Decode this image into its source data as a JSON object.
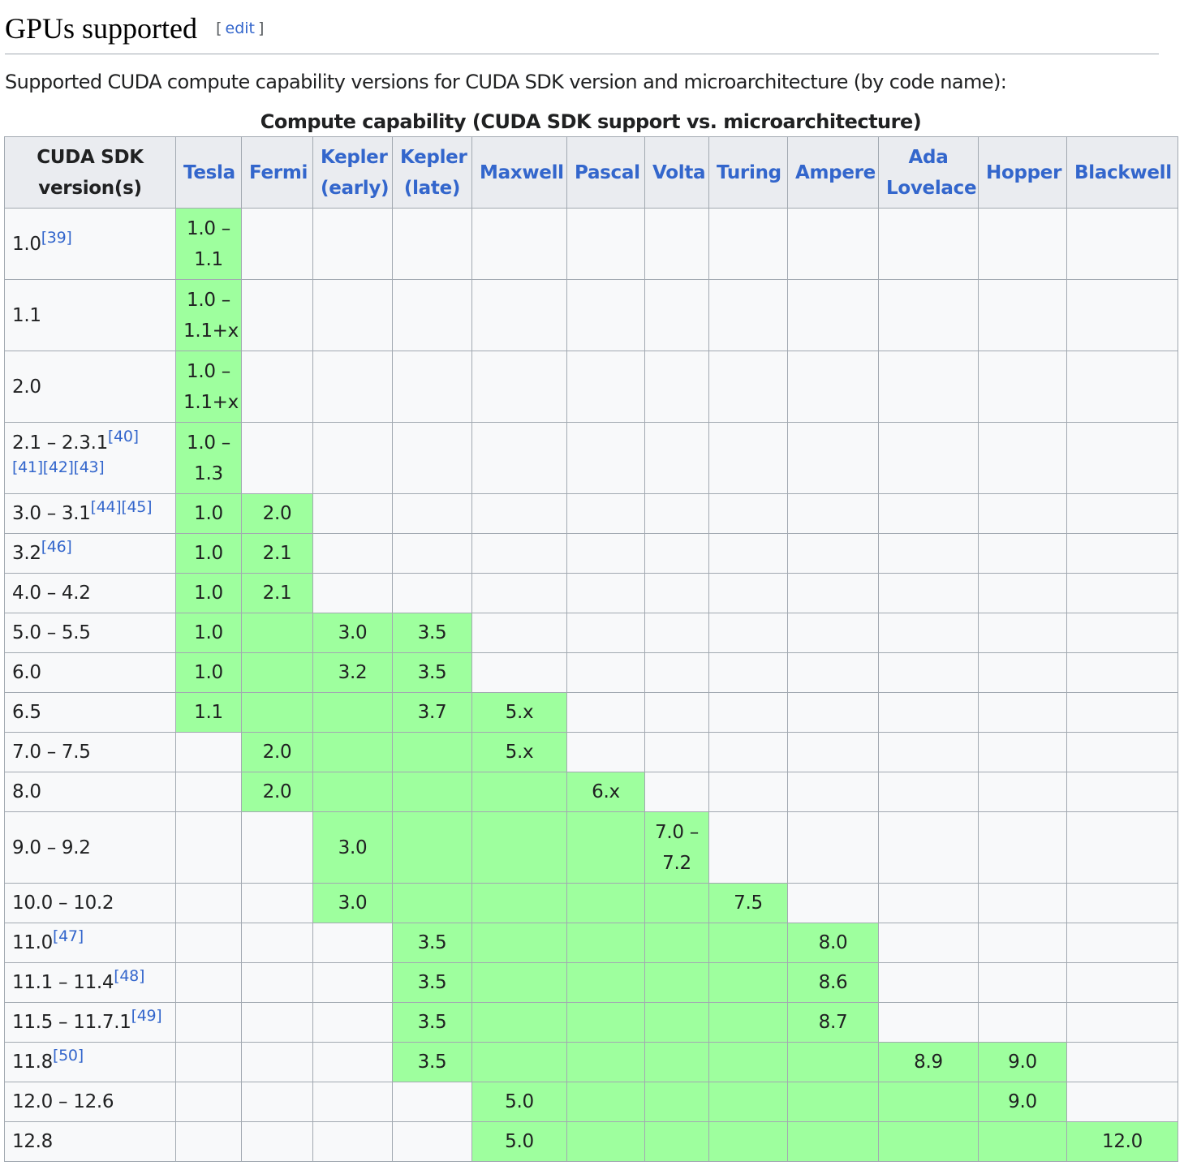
{
  "section": {
    "title": "GPUs supported",
    "edit_label": "edit",
    "edit_open": "[",
    "edit_close": "]",
    "intro": "Supported CUDA compute capability versions for CUDA SDK version and microarchitecture (by code name):"
  },
  "table": {
    "caption": "Compute capability (CUDA SDK support vs. microarchitecture)",
    "highlight_color": "#9eff9e",
    "header_color": "#eaecf0",
    "link_color": "#3366cc",
    "headers": [
      "CUDA SDK version(s)",
      "Tesla",
      "Fermi",
      "Kepler (early)",
      "Kepler (late)",
      "Maxwell",
      "Pascal",
      "Volta",
      "Turing",
      "Ampere",
      "Ada Lovelace",
      "Hopper",
      "Blackwell"
    ],
    "rows": [
      {
        "version": "1.0",
        "refs": "[39]",
        "cells": [
          {
            "t": "1.0 – 1.1",
            "g": true
          },
          {
            "t": "",
            "g": false
          },
          {
            "t": "",
            "g": false
          },
          {
            "t": "",
            "g": false
          },
          {
            "t": "",
            "g": false
          },
          {
            "t": "",
            "g": false
          },
          {
            "t": "",
            "g": false
          },
          {
            "t": "",
            "g": false
          },
          {
            "t": "",
            "g": false
          },
          {
            "t": "",
            "g": false
          },
          {
            "t": "",
            "g": false
          },
          {
            "t": "",
            "g": false
          }
        ]
      },
      {
        "version": "1.1",
        "refs": "",
        "cells": [
          {
            "t": "1.0 – 1.1+x",
            "g": true
          },
          {
            "t": "",
            "g": false
          },
          {
            "t": "",
            "g": false
          },
          {
            "t": "",
            "g": false
          },
          {
            "t": "",
            "g": false
          },
          {
            "t": "",
            "g": false
          },
          {
            "t": "",
            "g": false
          },
          {
            "t": "",
            "g": false
          },
          {
            "t": "",
            "g": false
          },
          {
            "t": "",
            "g": false
          },
          {
            "t": "",
            "g": false
          },
          {
            "t": "",
            "g": false
          }
        ]
      },
      {
        "version": "2.0",
        "refs": "",
        "cells": [
          {
            "t": "1.0 – 1.1+x",
            "g": true
          },
          {
            "t": "",
            "g": false
          },
          {
            "t": "",
            "g": false
          },
          {
            "t": "",
            "g": false
          },
          {
            "t": "",
            "g": false
          },
          {
            "t": "",
            "g": false
          },
          {
            "t": "",
            "g": false
          },
          {
            "t": "",
            "g": false
          },
          {
            "t": "",
            "g": false
          },
          {
            "t": "",
            "g": false
          },
          {
            "t": "",
            "g": false
          },
          {
            "t": "",
            "g": false
          }
        ]
      },
      {
        "version": "2.1 – 2.3.1",
        "refs": "[40][41][42][43]",
        "cells": [
          {
            "t": "1.0 – 1.3",
            "g": true
          },
          {
            "t": "",
            "g": false
          },
          {
            "t": "",
            "g": false
          },
          {
            "t": "",
            "g": false
          },
          {
            "t": "",
            "g": false
          },
          {
            "t": "",
            "g": false
          },
          {
            "t": "",
            "g": false
          },
          {
            "t": "",
            "g": false
          },
          {
            "t": "",
            "g": false
          },
          {
            "t": "",
            "g": false
          },
          {
            "t": "",
            "g": false
          },
          {
            "t": "",
            "g": false
          }
        ]
      },
      {
        "version": "3.0 – 3.1",
        "refs": "[44][45]",
        "cells": [
          {
            "t": "1.0",
            "g": true
          },
          {
            "t": "2.0",
            "g": true
          },
          {
            "t": "",
            "g": false
          },
          {
            "t": "",
            "g": false
          },
          {
            "t": "",
            "g": false
          },
          {
            "t": "",
            "g": false
          },
          {
            "t": "",
            "g": false
          },
          {
            "t": "",
            "g": false
          },
          {
            "t": "",
            "g": false
          },
          {
            "t": "",
            "g": false
          },
          {
            "t": "",
            "g": false
          },
          {
            "t": "",
            "g": false
          }
        ]
      },
      {
        "version": "3.2",
        "refs": "[46]",
        "cells": [
          {
            "t": "1.0",
            "g": true
          },
          {
            "t": "2.1",
            "g": true
          },
          {
            "t": "",
            "g": false
          },
          {
            "t": "",
            "g": false
          },
          {
            "t": "",
            "g": false
          },
          {
            "t": "",
            "g": false
          },
          {
            "t": "",
            "g": false
          },
          {
            "t": "",
            "g": false
          },
          {
            "t": "",
            "g": false
          },
          {
            "t": "",
            "g": false
          },
          {
            "t": "",
            "g": false
          },
          {
            "t": "",
            "g": false
          }
        ]
      },
      {
        "version": "4.0 – 4.2",
        "refs": "",
        "cells": [
          {
            "t": "1.0",
            "g": true
          },
          {
            "t": "2.1",
            "g": true
          },
          {
            "t": "",
            "g": false
          },
          {
            "t": "",
            "g": false
          },
          {
            "t": "",
            "g": false
          },
          {
            "t": "",
            "g": false
          },
          {
            "t": "",
            "g": false
          },
          {
            "t": "",
            "g": false
          },
          {
            "t": "",
            "g": false
          },
          {
            "t": "",
            "g": false
          },
          {
            "t": "",
            "g": false
          },
          {
            "t": "",
            "g": false
          }
        ]
      },
      {
        "version": "5.0 – 5.5",
        "refs": "",
        "cells": [
          {
            "t": "1.0",
            "g": true
          },
          {
            "t": "",
            "g": true
          },
          {
            "t": "3.0",
            "g": true
          },
          {
            "t": "3.5",
            "g": true
          },
          {
            "t": "",
            "g": false
          },
          {
            "t": "",
            "g": false
          },
          {
            "t": "",
            "g": false
          },
          {
            "t": "",
            "g": false
          },
          {
            "t": "",
            "g": false
          },
          {
            "t": "",
            "g": false
          },
          {
            "t": "",
            "g": false
          },
          {
            "t": "",
            "g": false
          }
        ]
      },
      {
        "version": "6.0",
        "refs": "",
        "cells": [
          {
            "t": "1.0",
            "g": true
          },
          {
            "t": "",
            "g": true
          },
          {
            "t": "3.2",
            "g": true
          },
          {
            "t": "3.5",
            "g": true
          },
          {
            "t": "",
            "g": false
          },
          {
            "t": "",
            "g": false
          },
          {
            "t": "",
            "g": false
          },
          {
            "t": "",
            "g": false
          },
          {
            "t": "",
            "g": false
          },
          {
            "t": "",
            "g": false
          },
          {
            "t": "",
            "g": false
          },
          {
            "t": "",
            "g": false
          }
        ]
      },
      {
        "version": "6.5",
        "refs": "",
        "cells": [
          {
            "t": "1.1",
            "g": true
          },
          {
            "t": "",
            "g": true
          },
          {
            "t": "",
            "g": true
          },
          {
            "t": "3.7",
            "g": true
          },
          {
            "t": "5.x",
            "g": true
          },
          {
            "t": "",
            "g": false
          },
          {
            "t": "",
            "g": false
          },
          {
            "t": "",
            "g": false
          },
          {
            "t": "",
            "g": false
          },
          {
            "t": "",
            "g": false
          },
          {
            "t": "",
            "g": false
          },
          {
            "t": "",
            "g": false
          }
        ]
      },
      {
        "version": "7.0 – 7.5",
        "refs": "",
        "cells": [
          {
            "t": "",
            "g": false
          },
          {
            "t": "2.0",
            "g": true
          },
          {
            "t": "",
            "g": true
          },
          {
            "t": "",
            "g": true
          },
          {
            "t": "5.x",
            "g": true
          },
          {
            "t": "",
            "g": false
          },
          {
            "t": "",
            "g": false
          },
          {
            "t": "",
            "g": false
          },
          {
            "t": "",
            "g": false
          },
          {
            "t": "",
            "g": false
          },
          {
            "t": "",
            "g": false
          },
          {
            "t": "",
            "g": false
          }
        ]
      },
      {
        "version": "8.0",
        "refs": "",
        "cells": [
          {
            "t": "",
            "g": false
          },
          {
            "t": "2.0",
            "g": true
          },
          {
            "t": "",
            "g": true
          },
          {
            "t": "",
            "g": true
          },
          {
            "t": "",
            "g": true
          },
          {
            "t": "6.x",
            "g": true
          },
          {
            "t": "",
            "g": false
          },
          {
            "t": "",
            "g": false
          },
          {
            "t": "",
            "g": false
          },
          {
            "t": "",
            "g": false
          },
          {
            "t": "",
            "g": false
          },
          {
            "t": "",
            "g": false
          }
        ]
      },
      {
        "version": "9.0 – 9.2",
        "refs": "",
        "cells": [
          {
            "t": "",
            "g": false
          },
          {
            "t": "",
            "g": false
          },
          {
            "t": "3.0",
            "g": true
          },
          {
            "t": "",
            "g": true
          },
          {
            "t": "",
            "g": true
          },
          {
            "t": "",
            "g": true
          },
          {
            "t": "7.0 – 7.2",
            "g": true
          },
          {
            "t": "",
            "g": false
          },
          {
            "t": "",
            "g": false
          },
          {
            "t": "",
            "g": false
          },
          {
            "t": "",
            "g": false
          },
          {
            "t": "",
            "g": false
          }
        ]
      },
      {
        "version": "10.0 – 10.2",
        "refs": "",
        "cells": [
          {
            "t": "",
            "g": false
          },
          {
            "t": "",
            "g": false
          },
          {
            "t": "3.0",
            "g": true
          },
          {
            "t": "",
            "g": true
          },
          {
            "t": "",
            "g": true
          },
          {
            "t": "",
            "g": true
          },
          {
            "t": "",
            "g": true
          },
          {
            "t": "7.5",
            "g": true
          },
          {
            "t": "",
            "g": false
          },
          {
            "t": "",
            "g": false
          },
          {
            "t": "",
            "g": false
          },
          {
            "t": "",
            "g": false
          }
        ]
      },
      {
        "version": "11.0",
        "refs": "[47]",
        "cells": [
          {
            "t": "",
            "g": false
          },
          {
            "t": "",
            "g": false
          },
          {
            "t": "",
            "g": false
          },
          {
            "t": "3.5",
            "g": true
          },
          {
            "t": "",
            "g": true
          },
          {
            "t": "",
            "g": true
          },
          {
            "t": "",
            "g": true
          },
          {
            "t": "",
            "g": true
          },
          {
            "t": "8.0",
            "g": true
          },
          {
            "t": "",
            "g": false
          },
          {
            "t": "",
            "g": false
          },
          {
            "t": "",
            "g": false
          }
        ]
      },
      {
        "version": "11.1 – 11.4",
        "refs": "[48]",
        "cells": [
          {
            "t": "",
            "g": false
          },
          {
            "t": "",
            "g": false
          },
          {
            "t": "",
            "g": false
          },
          {
            "t": "3.5",
            "g": true
          },
          {
            "t": "",
            "g": true
          },
          {
            "t": "",
            "g": true
          },
          {
            "t": "",
            "g": true
          },
          {
            "t": "",
            "g": true
          },
          {
            "t": "8.6",
            "g": true
          },
          {
            "t": "",
            "g": false
          },
          {
            "t": "",
            "g": false
          },
          {
            "t": "",
            "g": false
          }
        ]
      },
      {
        "version": "11.5 – 11.7.1",
        "refs": "[49]",
        "cells": [
          {
            "t": "",
            "g": false
          },
          {
            "t": "",
            "g": false
          },
          {
            "t": "",
            "g": false
          },
          {
            "t": "3.5",
            "g": true
          },
          {
            "t": "",
            "g": true
          },
          {
            "t": "",
            "g": true
          },
          {
            "t": "",
            "g": true
          },
          {
            "t": "",
            "g": true
          },
          {
            "t": "8.7",
            "g": true
          },
          {
            "t": "",
            "g": false
          },
          {
            "t": "",
            "g": false
          },
          {
            "t": "",
            "g": false
          }
        ]
      },
      {
        "version": "11.8",
        "refs": "[50]",
        "cells": [
          {
            "t": "",
            "g": false
          },
          {
            "t": "",
            "g": false
          },
          {
            "t": "",
            "g": false
          },
          {
            "t": "3.5",
            "g": true
          },
          {
            "t": "",
            "g": true
          },
          {
            "t": "",
            "g": true
          },
          {
            "t": "",
            "g": true
          },
          {
            "t": "",
            "g": true
          },
          {
            "t": "",
            "g": true
          },
          {
            "t": "8.9",
            "g": true
          },
          {
            "t": "9.0",
            "g": true
          },
          {
            "t": "",
            "g": false
          }
        ]
      },
      {
        "version": "12.0 – 12.6",
        "refs": "",
        "cells": [
          {
            "t": "",
            "g": false
          },
          {
            "t": "",
            "g": false
          },
          {
            "t": "",
            "g": false
          },
          {
            "t": "",
            "g": false
          },
          {
            "t": "5.0",
            "g": true
          },
          {
            "t": "",
            "g": true
          },
          {
            "t": "",
            "g": true
          },
          {
            "t": "",
            "g": true
          },
          {
            "t": "",
            "g": true
          },
          {
            "t": "",
            "g": true
          },
          {
            "t": "9.0",
            "g": true
          },
          {
            "t": "",
            "g": false
          }
        ]
      },
      {
        "version": "12.8",
        "refs": "",
        "cells": [
          {
            "t": "",
            "g": false
          },
          {
            "t": "",
            "g": false
          },
          {
            "t": "",
            "g": false
          },
          {
            "t": "",
            "g": false
          },
          {
            "t": "5.0",
            "g": true
          },
          {
            "t": "",
            "g": true
          },
          {
            "t": "",
            "g": true
          },
          {
            "t": "",
            "g": true
          },
          {
            "t": "",
            "g": true
          },
          {
            "t": "",
            "g": true
          },
          {
            "t": "",
            "g": true
          },
          {
            "t": "12.0",
            "g": true
          }
        ]
      }
    ]
  }
}
